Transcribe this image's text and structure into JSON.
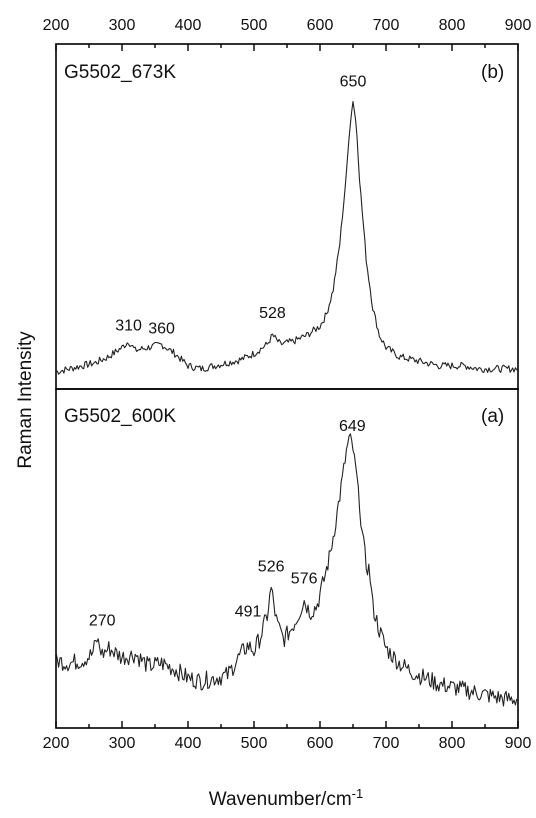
{
  "chart_data": {
    "type": "line",
    "xlabel": "Wavenumber/cm",
    "xlabel_superscript": "-1",
    "ylabel": "Raman Intensity",
    "xlim": [
      200,
      900
    ],
    "xticks": [
      200,
      300,
      400,
      500,
      600,
      700,
      800,
      900
    ],
    "xtick_labels": [
      "200",
      "300",
      "400",
      "500",
      "600",
      "700",
      "800",
      "900"
    ],
    "ylim": [
      0,
      1
    ],
    "grid": false,
    "panels": [
      {
        "position": "top",
        "sample_label": "G5502_673K",
        "panel_letter": "(b)",
        "peaks": [
          {
            "x": 310,
            "y": 0.12,
            "label": "310"
          },
          {
            "x": 360,
            "y": 0.11,
            "label": "360"
          },
          {
            "x": 528,
            "y": 0.16,
            "label": "528"
          },
          {
            "x": 650,
            "y": 0.92,
            "label": "650"
          }
        ],
        "series": [
          {
            "x": [
              200,
              220,
              240,
              260,
              280,
              300,
              310,
              320,
              340,
              360,
              380,
              400,
              420,
              440,
              460,
              480,
              500,
              520,
              528,
              540,
              560,
              580,
              600,
              610,
              620,
              630,
              640,
              645,
              650,
              655,
              660,
              670,
              680,
              690,
              700,
              720,
              740,
              760,
              780,
              800,
              820,
              840,
              860,
              880,
              900
            ],
            "y": [
              0.03,
              0.04,
              0.05,
              0.06,
              0.08,
              0.11,
              0.13,
              0.1,
              0.11,
              0.12,
              0.09,
              0.05,
              0.04,
              0.05,
              0.06,
              0.07,
              0.09,
              0.12,
              0.15,
              0.12,
              0.13,
              0.15,
              0.18,
              0.22,
              0.3,
              0.45,
              0.68,
              0.83,
              0.92,
              0.84,
              0.66,
              0.4,
              0.24,
              0.15,
              0.11,
              0.08,
              0.07,
              0.06,
              0.05,
              0.05,
              0.05,
              0.04,
              0.04,
              0.04,
              0.04
            ]
          }
        ]
      },
      {
        "position": "bottom",
        "sample_label": "G5502_600K",
        "panel_letter": "(a)",
        "peaks": [
          {
            "x": 270,
            "y": 0.27,
            "label": "270"
          },
          {
            "x": 491,
            "y": 0.3,
            "label": "491"
          },
          {
            "x": 526,
            "y": 0.45,
            "label": "526"
          },
          {
            "x": 576,
            "y": 0.41,
            "label": "576"
          },
          {
            "x": 649,
            "y": 0.92,
            "label": "649"
          }
        ],
        "series": [
          {
            "x": [
              200,
              220,
              240,
              255,
              262,
              270,
              280,
              300,
              320,
              340,
              360,
              380,
              400,
              420,
              440,
              460,
              480,
              491,
              500,
              510,
              520,
              526,
              535,
              545,
              555,
              565,
              576,
              585,
              595,
              605,
              615,
              625,
              635,
              640,
              645,
              649,
              655,
              660,
              665,
              670,
              675,
              680,
              690,
              700,
              720,
              740,
              760,
              780,
              800,
              820,
              840,
              860,
              880,
              900
            ],
            "y": [
              0.2,
              0.19,
              0.2,
              0.22,
              0.27,
              0.22,
              0.24,
              0.21,
              0.22,
              0.18,
              0.19,
              0.17,
              0.14,
              0.13,
              0.14,
              0.15,
              0.22,
              0.25,
              0.23,
              0.28,
              0.35,
              0.44,
              0.32,
              0.27,
              0.3,
              0.34,
              0.4,
              0.36,
              0.38,
              0.46,
              0.55,
              0.68,
              0.82,
              0.9,
              0.95,
              0.92,
              0.83,
              0.72,
              0.6,
              0.52,
              0.5,
              0.38,
              0.3,
              0.24,
              0.19,
              0.16,
              0.14,
              0.12,
              0.11,
              0.1,
              0.09,
              0.08,
              0.07,
              0.07
            ]
          }
        ]
      }
    ]
  }
}
